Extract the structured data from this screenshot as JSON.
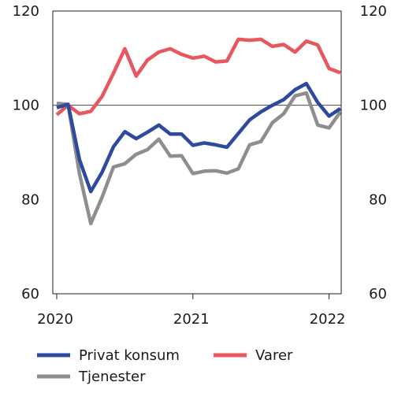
{
  "chart_data": {
    "type": "line",
    "title": "",
    "xlabel": "",
    "ylabel": "",
    "ylim": [
      60,
      120
    ],
    "yticks": [
      60,
      80,
      100,
      120
    ],
    "xticks": [
      "2020",
      "2021",
      "2022"
    ],
    "reference_line": 100,
    "grid": false,
    "legend_position": "bottom",
    "series": [
      {
        "name": "Privat konsum",
        "color": "#2e4a9e",
        "values": [
          99.5,
          100.2,
          88.5,
          81.7,
          85.8,
          91.2,
          94.4,
          92.9,
          94.3,
          95.8,
          93.9,
          93.9,
          91.5,
          92.0,
          91.6,
          91.1,
          94.0,
          96.9,
          98.6,
          100.0,
          101.2,
          103.3,
          104.6,
          100.6,
          97.7,
          99.3
        ]
      },
      {
        "name": "Varer",
        "color": "#e8565e",
        "values": [
          98.0,
          100.0,
          98.2,
          98.7,
          101.9,
          106.8,
          112.0,
          106.2,
          109.6,
          111.3,
          112.0,
          110.8,
          110.0,
          110.4,
          109.2,
          109.4,
          114.0,
          113.8,
          114.0,
          112.5,
          112.9,
          111.3,
          113.6,
          112.8,
          107.8,
          106.9
        ]
      },
      {
        "name": "Tjenester",
        "color": "#8e8e8e",
        "values": [
          100.4,
          100.2,
          85.5,
          74.9,
          80.5,
          86.9,
          87.6,
          89.6,
          90.6,
          92.8,
          89.2,
          89.3,
          85.5,
          86.0,
          86.1,
          85.6,
          86.5,
          91.6,
          92.3,
          96.3,
          98.2,
          102.0,
          102.6,
          95.8,
          95.2,
          98.6
        ]
      }
    ]
  }
}
